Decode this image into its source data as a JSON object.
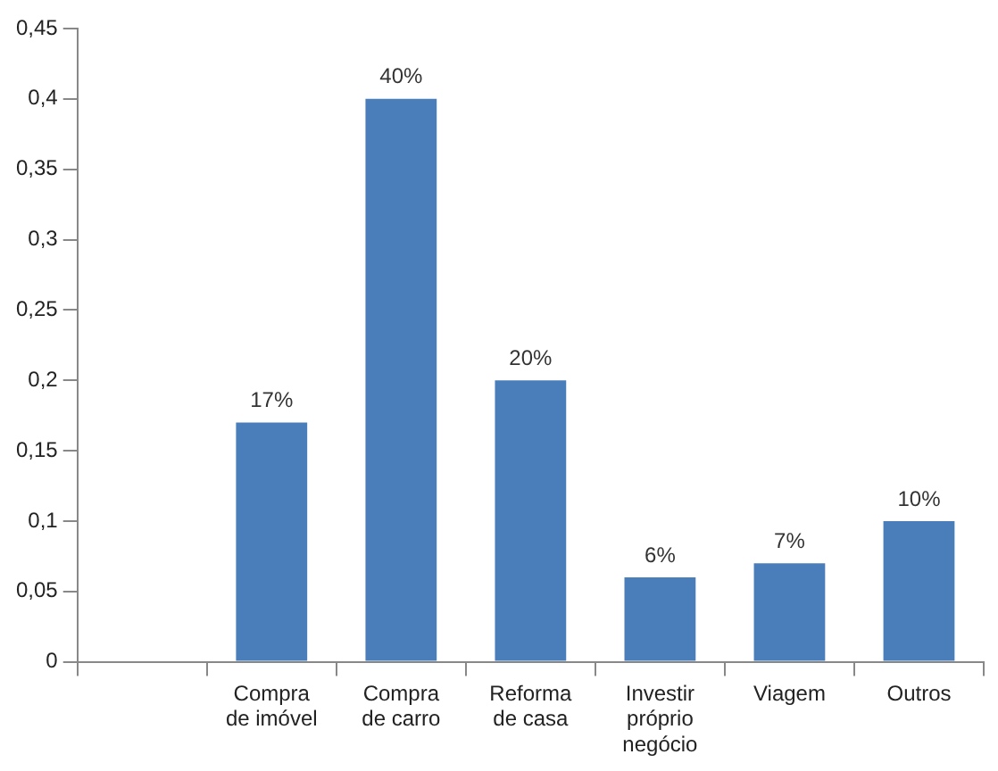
{
  "chart_data": {
    "type": "bar",
    "categories": [
      null,
      "Compra de imóvel",
      "Compra de carro",
      "Reforma de casa",
      "Investir próprio negócio",
      "Viagem",
      "Outros"
    ],
    "values": [
      null,
      0.17,
      0.4,
      0.2,
      0.06,
      0.07,
      0.1
    ],
    "value_labels": [
      null,
      "17%",
      "40%",
      "20%",
      "6%",
      "7%",
      "10%"
    ],
    "color": "#4a7ebb",
    "ylim": [
      0,
      0.45
    ],
    "yticks": [
      0,
      {
        "value": 0.05,
        "label": "0,05"
      },
      {
        "value": 0.1,
        "label": "0,1"
      },
      {
        "value": 0.15,
        "label": "0,15"
      },
      {
        "value": 0.2,
        "label": "0,2"
      },
      {
        "value": 0.25,
        "label": "0,25"
      },
      {
        "value": 0.3,
        "label": "0,3"
      },
      {
        "value": 0.35,
        "label": "0,35"
      },
      {
        "value": 0.4,
        "label": "0,4"
      },
      {
        "value": 0.45,
        "label": "0,45"
      }
    ],
    "grid": false,
    "legend": false
  }
}
